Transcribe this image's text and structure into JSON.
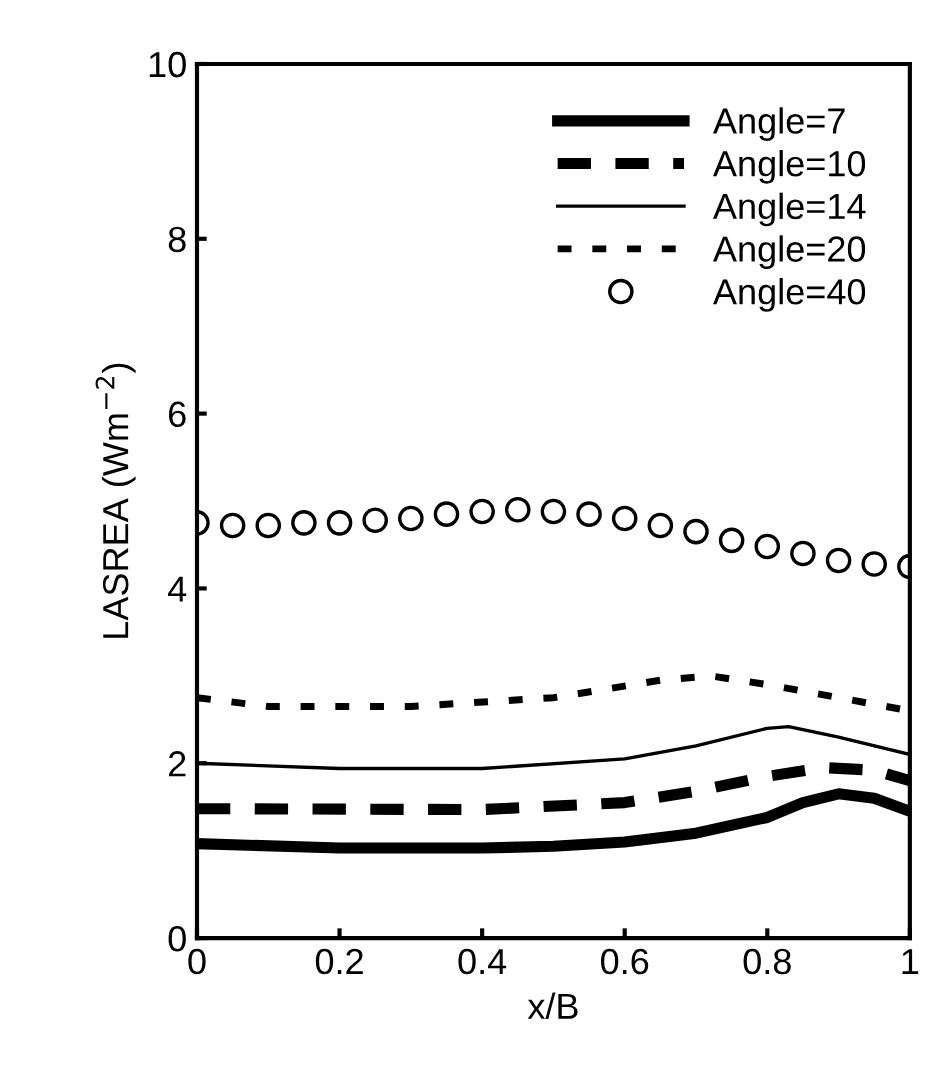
{
  "chart_data": {
    "type": "line",
    "xlabel": "x/B",
    "ylabel": "LASREA (Wm$^{−2}$)",
    "xlim": [
      0,
      1
    ],
    "ylim": [
      0,
      10
    ],
    "xticks": [
      {
        "value": 0,
        "label": "0"
      },
      0.2,
      0.4,
      0.6,
      0.8,
      {
        "value": 1,
        "label": "1"
      }
    ],
    "yticks": [
      0,
      2,
      4,
      6,
      8,
      10
    ],
    "grid": false,
    "legend": "top right",
    "series": [
      {
        "name": "Angle=7",
        "color": "#000000",
        "line_style": "solid",
        "x": [
          0,
          0.2,
          0.4,
          0.5,
          0.6,
          0.7,
          0.8,
          0.85,
          0.9,
          0.95,
          1
        ],
        "values": [
          1.08,
          1.03,
          1.03,
          1.05,
          1.1,
          1.2,
          1.38,
          1.55,
          1.65,
          1.6,
          1.45
        ]
      },
      {
        "name": "Angle=10",
        "color": "#000000",
        "line_style": "dashed",
        "x": [
          0,
          0.4,
          0.6,
          0.7,
          0.8,
          0.88,
          0.95,
          1
        ],
        "values": [
          1.48,
          1.47,
          1.55,
          1.68,
          1.85,
          1.95,
          1.92,
          1.8
        ]
      },
      {
        "name": "Angle=14",
        "color": "#000000",
        "line_style": "solid",
        "x": [
          0,
          0.2,
          0.4,
          0.6,
          0.7,
          0.8,
          0.83,
          0.9,
          1
        ],
        "values": [
          2.0,
          1.94,
          1.94,
          2.05,
          2.2,
          2.4,
          2.42,
          2.3,
          2.1
        ]
      },
      {
        "name": "Angle=20",
        "color": "#000000",
        "line_style": "dotted",
        "x": [
          0,
          0.1,
          0.3,
          0.5,
          0.65,
          0.72,
          0.8,
          0.9,
          1
        ],
        "values": [
          2.75,
          2.65,
          2.65,
          2.75,
          2.95,
          3.0,
          2.9,
          2.75,
          2.6
        ]
      },
      {
        "name": "Angle=40",
        "color": "#000000",
        "type": "scatter",
        "marker": "circle",
        "x": [
          0,
          0.05,
          0.1,
          0.15,
          0.2,
          0.25,
          0.3,
          0.35,
          0.4,
          0.45,
          0.5,
          0.55,
          0.6,
          0.65,
          0.7,
          0.75,
          0.8,
          0.85,
          0.9,
          0.95,
          1
        ],
        "values": [
          4.75,
          4.72,
          4.72,
          4.75,
          4.75,
          4.78,
          4.8,
          4.85,
          4.88,
          4.9,
          4.88,
          4.85,
          4.8,
          4.72,
          4.65,
          4.55,
          4.48,
          4.4,
          4.32,
          4.28,
          4.25
        ]
      }
    ]
  }
}
